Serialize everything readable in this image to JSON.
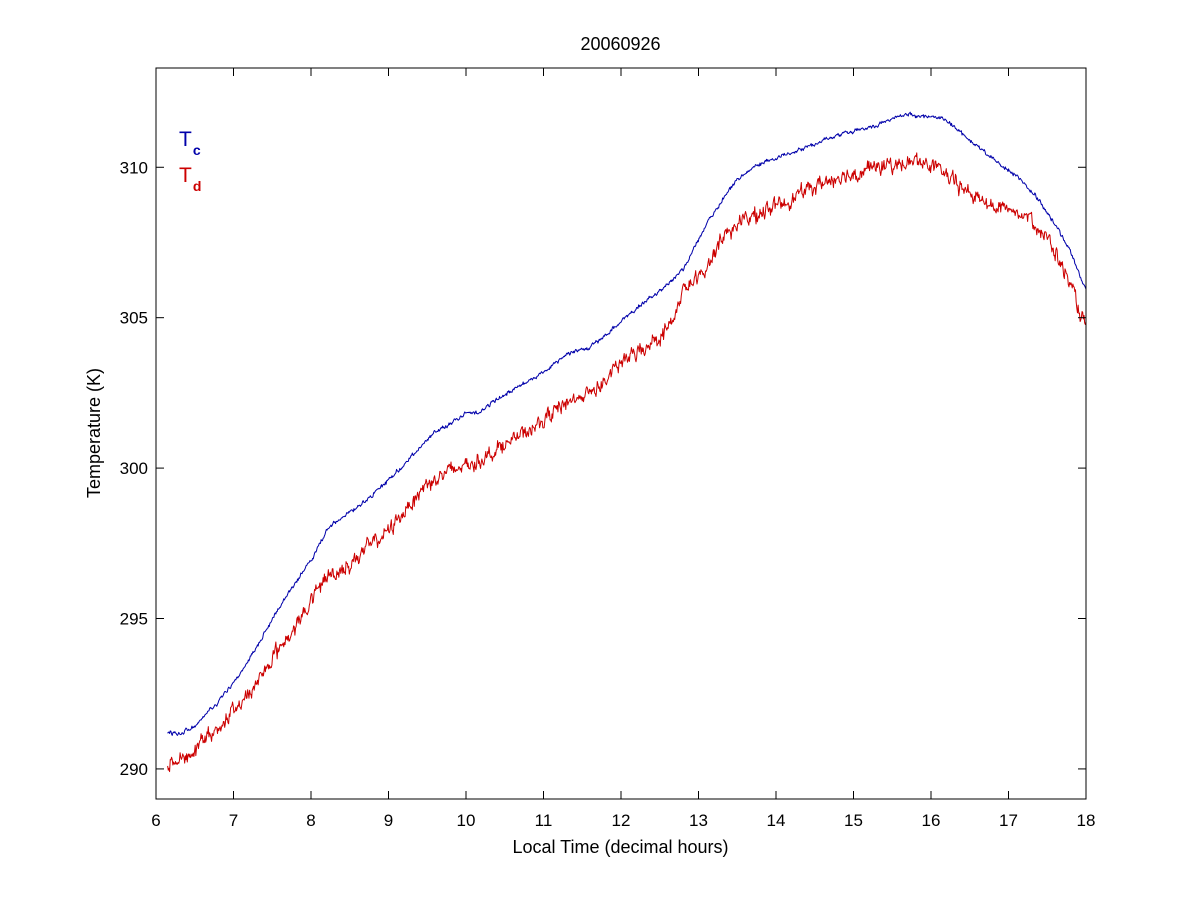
{
  "chart_data": {
    "type": "line",
    "title": "20060926",
    "xlabel": "Local Time (decimal hours)",
    "ylabel": "Temperature (K)",
    "xlim": [
      6,
      18
    ],
    "ylim": [
      289,
      313.3
    ],
    "xticks": [
      6,
      7,
      8,
      9,
      10,
      11,
      12,
      13,
      14,
      15,
      16,
      17,
      18
    ],
    "yticks": [
      290,
      295,
      300,
      305,
      310
    ],
    "xtick_labels": [
      "6",
      "7",
      "8",
      "9",
      "10",
      "11",
      "12",
      "13",
      "14",
      "15",
      "16",
      "17",
      "18"
    ],
    "ytick_labels": [
      "290",
      "295",
      "300",
      "305",
      "310"
    ],
    "grid": false,
    "legend_position": "top-left",
    "series": [
      {
        "name_main": "T",
        "name_sub": "c",
        "color": "#0000aa",
        "noise": 0.06,
        "x": [
          6.15,
          6.3,
          6.4,
          6.5,
          6.6,
          6.8,
          7.0,
          7.2,
          7.4,
          7.6,
          7.8,
          8.0,
          8.2,
          8.3,
          8.5,
          8.7,
          9.0,
          9.3,
          9.6,
          9.8,
          10.0,
          10.2,
          10.4,
          10.6,
          11.0,
          11.3,
          11.6,
          11.8,
          12.0,
          12.2,
          12.4,
          12.6,
          12.8,
          13.0,
          13.2,
          13.4,
          13.6,
          13.8,
          14.0,
          14.3,
          14.6,
          15.0,
          15.3,
          15.6,
          15.7,
          15.8,
          16.0,
          16.2,
          16.4,
          16.6,
          16.8,
          17.0,
          17.2,
          17.4,
          17.6,
          17.8,
          18.0
        ],
        "y": [
          291.2,
          291.2,
          291.3,
          291.4,
          291.7,
          292.2,
          292.9,
          293.6,
          294.5,
          295.4,
          296.2,
          296.9,
          297.9,
          298.2,
          298.5,
          298.9,
          299.6,
          300.4,
          301.2,
          301.5,
          301.8,
          301.9,
          302.3,
          302.6,
          303.2,
          303.8,
          304.0,
          304.4,
          304.9,
          305.3,
          305.7,
          306.1,
          306.6,
          307.6,
          308.5,
          309.3,
          309.8,
          310.1,
          310.3,
          310.6,
          310.9,
          311.2,
          311.4,
          311.7,
          311.8,
          311.7,
          311.7,
          311.6,
          311.1,
          310.7,
          310.3,
          309.9,
          309.5,
          308.9,
          308.1,
          307.2,
          305.9
        ]
      },
      {
        "name_main": "T",
        "name_sub": "d",
        "color": "#cc0000",
        "noise": 0.22,
        "x": [
          6.15,
          6.3,
          6.5,
          6.7,
          6.9,
          7.1,
          7.3,
          7.5,
          7.7,
          7.9,
          8.1,
          8.2,
          8.3,
          8.5,
          8.7,
          9.0,
          9.3,
          9.5,
          9.8,
          10.0,
          10.2,
          10.5,
          10.8,
          11.0,
          11.3,
          11.6,
          11.8,
          12.0,
          12.3,
          12.6,
          12.7,
          12.8,
          13.0,
          13.1,
          13.3,
          13.5,
          13.8,
          14.0,
          14.3,
          14.6,
          15.0,
          15.3,
          15.6,
          15.8,
          16.0,
          16.2,
          16.4,
          16.6,
          16.8,
          17.0,
          17.2,
          17.4,
          17.6,
          17.8,
          18.0
        ],
        "y": [
          290.2,
          290.3,
          290.6,
          291.1,
          291.6,
          292.2,
          292.9,
          293.7,
          294.4,
          295.1,
          296.0,
          296.4,
          296.5,
          296.8,
          297.3,
          297.9,
          298.9,
          299.5,
          299.9,
          300.1,
          300.3,
          300.8,
          301.2,
          301.6,
          302.2,
          302.5,
          302.9,
          303.5,
          304.0,
          304.6,
          305.1,
          305.9,
          306.3,
          306.6,
          307.7,
          308.1,
          308.5,
          308.7,
          309.1,
          309.5,
          309.8,
          310.0,
          310.1,
          310.2,
          310.1,
          309.7,
          309.3,
          309.0,
          308.7,
          308.6,
          308.5,
          308.0,
          307.2,
          306.1,
          304.6
        ]
      }
    ]
  }
}
